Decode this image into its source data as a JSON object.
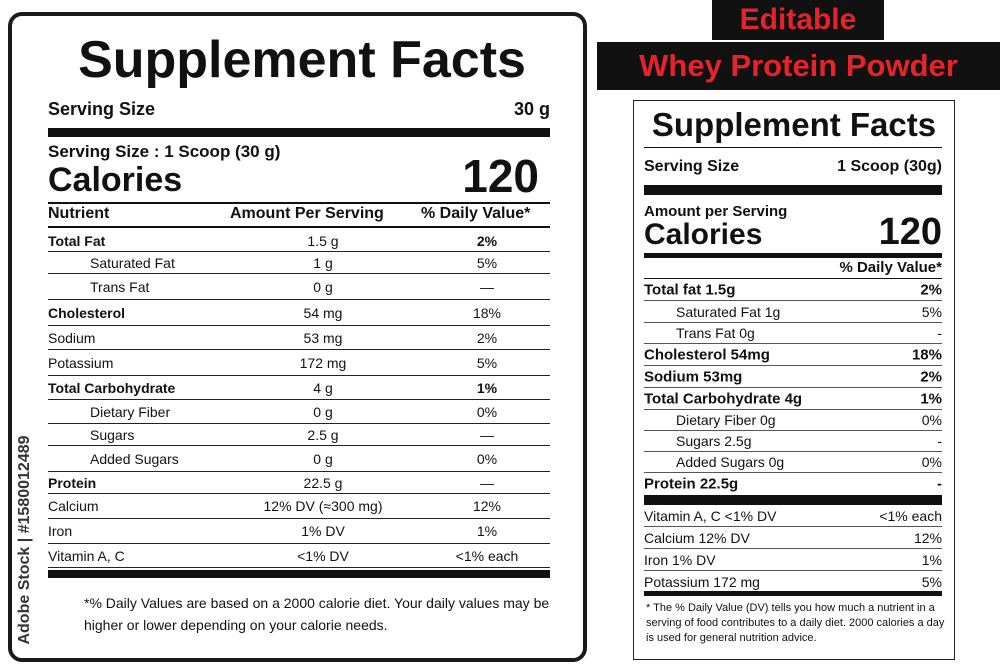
{
  "left_label": {
    "title": "Supplement Facts",
    "serving_size_label": "Serving Size",
    "serving_size_value": "30 g",
    "serving_size_scoop": "Serving Size : 1 Scoop (30 g)",
    "calories_label": "Calories",
    "calories_value": "120",
    "header": {
      "nutrient": "Nutrient",
      "amount": "Amount Per Serving",
      "dv": "% Daily Value*"
    },
    "rows": [
      {
        "name": "Total Fat",
        "amount": "1.5 g",
        "dv": "2%"
      },
      {
        "name": "Saturated Fat",
        "amount": "1 g",
        "dv": "5%"
      },
      {
        "name": "Trans Fat",
        "amount": "0 g",
        "dv": "—"
      },
      {
        "name": "Cholesterol",
        "amount": "54 mg",
        "dv": "18%"
      },
      {
        "name": "Sodium",
        "amount": "53 mg",
        "dv": "2%"
      },
      {
        "name": "Potassium",
        "amount": "172 mg",
        "dv": "5%"
      },
      {
        "name": "Total Carbohydrate",
        "amount": "4 g",
        "dv": "1%"
      },
      {
        "name": "Dietary Fiber",
        "amount": "0 g",
        "dv": "0%"
      },
      {
        "name": "Sugars",
        "amount": "2.5 g",
        "dv": "—"
      },
      {
        "name": "Added Sugars",
        "amount": "0 g",
        "dv": "0%"
      },
      {
        "name": "Protein",
        "amount": "22.5 g",
        "dv": "—"
      },
      {
        "name": "Calcium",
        "amount": "12% DV (≈300 mg)",
        "dv": "12%"
      },
      {
        "name": "Iron",
        "amount": "1% DV",
        "dv": "1%"
      },
      {
        "name": "Vitamin A, C",
        "amount": "<1% DV",
        "dv": "<1% each"
      }
    ],
    "footnote": "*% Daily Values are based on a 2000 calorie diet. Your daily values may be higher or lower depending on your calorie needs."
  },
  "watermark": "Adobe Stock | #1580012489",
  "banner": {
    "line1": "Editable",
    "line2": "Whey Protein Powder",
    "text_color": "#e4242a",
    "background": "#111111"
  },
  "right_label": {
    "title": "Supplement Facts",
    "serving_size_label": "Serving Size",
    "serving_size_value": "1 Scoop (30g)",
    "amount_per_serving": "Amount per Serving",
    "calories_label": "Calories",
    "calories_value": "120",
    "dv_header": "% Daily Value*",
    "rows_main": [
      {
        "name": "Total fat 1.5g",
        "dv": "2%"
      },
      {
        "name": "Saturated Fat 1g",
        "dv": "5%"
      },
      {
        "name": "Trans Fat 0g",
        "dv": "-"
      },
      {
        "name": "Cholesterol 54mg",
        "dv": "18%"
      },
      {
        "name": "Sodium 53mg",
        "dv": "2%"
      },
      {
        "name": "Total Carbohydrate 4g",
        "dv": "1%"
      },
      {
        "name": "Dietary Fiber 0g",
        "dv": "0%"
      },
      {
        "name": "Sugars 2.5g",
        "dv": "-"
      },
      {
        "name": "Added Sugars 0g",
        "dv": "0%"
      },
      {
        "name": "Protein 22.5g",
        "dv": "-"
      }
    ],
    "rows_vitamins": [
      {
        "name": "Vitamin A, C <1% DV",
        "dv": "<1% each"
      },
      {
        "name": "Calcium 12% DV",
        "dv": "12%"
      },
      {
        "name": "Iron 1% DV",
        "dv": "1%"
      },
      {
        "name": "Potassium 172 mg",
        "dv": "5%"
      }
    ],
    "footnote": "* The % Daily Value (DV) tells you how much a nutrient in a serving of food contributes to a daily diet. 2000 calories a day is used for general nutrition advice."
  }
}
